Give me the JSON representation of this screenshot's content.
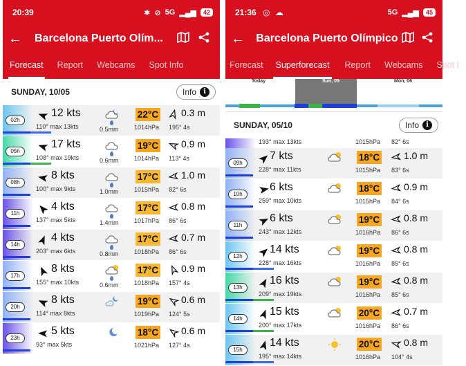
{
  "left": {
    "status": {
      "time": "20:39",
      "network": "5G",
      "battery": "42"
    },
    "title": "Barcelona Puerto Olím...",
    "tabs": [
      "Forecast",
      "Report",
      "Webcams",
      "Spot Info"
    ],
    "day": "SUNDAY, 10/05",
    "info_label": "Info",
    "rows": [
      {
        "hour": "02h",
        "speed": "12 kts",
        "dir": "110° max 13kts",
        "weather": "cloud-moon-rain",
        "rain": "0.5mm",
        "temp": "22°C",
        "temp_color": "#f5a623",
        "pressure": "1014hPa",
        "wave": "0.3 m",
        "wave_detail": "195° 4s",
        "grad": "#6cc6ef",
        "bar": [
          "#1e3fd8",
          "#3b6cf0"
        ]
      },
      {
        "hour": "05h",
        "speed": "17 kts",
        "dir": "108° max 19kts",
        "weather": "cloud-rain",
        "rain": "0.6mm",
        "temp": "19°C",
        "temp_color": "#f5a623",
        "pressure": "1014hPa",
        "wave": "0.9 m",
        "wave_detail": "113° 4s",
        "grad": "#43d9a6",
        "bar": [
          "#1e3fd8",
          "#39b54a"
        ]
      },
      {
        "hour": "08h",
        "speed": "8 kts",
        "dir": "100° max 9kts",
        "weather": "cloud-rain",
        "rain": "1.0mm",
        "temp": "17°C",
        "temp_color": "#f7b733",
        "pressure": "1015hPa",
        "wave": "1.0 m",
        "wave_detail": "82° 6s",
        "grad": "#8fb1f5",
        "bar": [
          "#1e3fd8"
        ]
      },
      {
        "hour": "11h",
        "speed": "4 kts",
        "dir": "137° max 5kts",
        "weather": "cloud-rain",
        "rain": "1.4mm",
        "temp": "17°C",
        "temp_color": "#f7b733",
        "pressure": "1017hPa",
        "wave": "0.8 m",
        "wave_detail": "86° 6s",
        "grad": "#6a50e8",
        "bar": [
          "#1e3fd8"
        ]
      },
      {
        "hour": "14h",
        "speed": "4 kts",
        "dir": "203° max 6kts",
        "weather": "cloud-rain",
        "rain": "0.8mm",
        "temp": "17°C",
        "temp_color": "#f7b733",
        "pressure": "1018hPa",
        "wave": "0.7 m",
        "wave_detail": "86° 6s",
        "grad": "#6a50e8",
        "bar": [
          "#1e3fd8"
        ]
      },
      {
        "hour": "17h",
        "speed": "8 kts",
        "dir": "155° max 10kts",
        "weather": "sun-cloud-rain",
        "rain": "0.6mm",
        "temp": "17°C",
        "temp_color": "#f7b733",
        "pressure": "1018hPa",
        "wave": "0.9 m",
        "wave_detail": "157° 4s",
        "grad": "#8fb1f5",
        "bar": [
          "#1e3fd8"
        ]
      },
      {
        "hour": "20h",
        "speed": "8 kts",
        "dir": "114° max 8kts",
        "weather": "moon-cloud",
        "rain": "",
        "temp": "19°C",
        "temp_color": "#f5a623",
        "pressure": "1019hPa",
        "wave": "0.6 m",
        "wave_detail": "124° 5s",
        "grad": "#8fb1f5",
        "bar": [
          "#1e3fd8"
        ]
      },
      {
        "hour": "23h",
        "speed": "5 kts",
        "dir": "93° max 5kts",
        "weather": "moon",
        "rain": "",
        "temp": "18°C",
        "temp_color": "#f5a623",
        "pressure": "1021hPa",
        "wave": "0.6 m",
        "wave_detail": "127° 4s",
        "grad": "#6a50e8",
        "bar": [
          "#1e3fd8"
        ]
      }
    ]
  },
  "right": {
    "status": {
      "time": "21:36",
      "network": "5G",
      "battery": "45"
    },
    "title": "Barcelona Puerto Olímpico",
    "tabs": [
      "Forecast",
      "Superforecast",
      "Report",
      "Webcams",
      "Spot I"
    ],
    "timeline": {
      "today": "Today",
      "sun": "Sun, 05",
      "mon": "Mon, 06"
    },
    "day": "SUNDAY, 05/10",
    "info_label": "Info",
    "partial": {
      "dir": "193° max 13kts",
      "pressure": "1015hPa",
      "wave_detail": "82° 6s"
    },
    "rows": [
      {
        "hour": "09h",
        "speed": "7 kts",
        "dir": "228° max 11kts",
        "weather": "sun-cloud",
        "temp": "18°C",
        "temp_color": "#f5a623",
        "pressure": "1015hPa",
        "wave": "1.0 m",
        "wave_detail": "83° 6s",
        "grad": "#8fb1f5",
        "bar": [
          "#1e3fd8"
        ]
      },
      {
        "hour": "10h",
        "speed": "6 kts",
        "dir": "259° max 10kts",
        "weather": "sun-cloud",
        "temp": "18°C",
        "temp_color": "#f5a623",
        "pressure": "1015hPa",
        "wave": "0.9 m",
        "wave_detail": "84° 6s",
        "grad": "#8fb1f5",
        "bar": [
          "#1e3fd8"
        ]
      },
      {
        "hour": "11h",
        "speed": "6 kts",
        "dir": "243° max 12kts",
        "weather": "sun-cloud",
        "temp": "19°C",
        "temp_color": "#f5a623",
        "pressure": "1016hPa",
        "wave": "0.8 m",
        "wave_detail": "86° 6s",
        "grad": "#8fb1f5",
        "bar": [
          "#1e3fd8"
        ]
      },
      {
        "hour": "12h",
        "speed": "14 kts",
        "dir": "228° max 16kts",
        "weather": "sun-cloud",
        "temp": "19°C",
        "temp_color": "#f5a623",
        "pressure": "1016hPa",
        "wave": "0.8 m",
        "wave_detail": "85° 6s",
        "grad": "#6cc6ef",
        "bar": [
          "#1e3fd8",
          "#3b6cf0"
        ]
      },
      {
        "hour": "13h",
        "speed": "16 kts",
        "dir": "209° max 19kts",
        "weather": "sun-cloud",
        "temp": "19°C",
        "temp_color": "#f5a623",
        "pressure": "1016hPa",
        "wave": "0.8 m",
        "wave_detail": "85° 6s",
        "grad": "#43d9a6",
        "bar": [
          "#1e3fd8",
          "#39b54a"
        ]
      },
      {
        "hour": "14h",
        "speed": "15 kts",
        "dir": "200° max 17kts",
        "weather": "sun-cloud",
        "temp": "20°C",
        "temp_color": "#f5a623",
        "pressure": "1016hPa",
        "wave": "0.7 m",
        "wave_detail": "86° 6s",
        "grad": "#6cc6ef",
        "bar": [
          "#1e3fd8",
          "#39b54a"
        ]
      },
      {
        "hour": "15h",
        "speed": "14 kts",
        "dir": "195° max 14kts",
        "weather": "sun",
        "temp": "20°C",
        "temp_color": "#f5a623",
        "pressure": "1016hPa",
        "wave": "0.8 m",
        "wave_detail": "104° 4s",
        "grad": "#6cc6ef",
        "bar": [
          "#1e3fd8",
          "#3b6cf0"
        ]
      }
    ]
  },
  "colors": {
    "brand": "#d6101e",
    "temp": "#f5a623"
  }
}
